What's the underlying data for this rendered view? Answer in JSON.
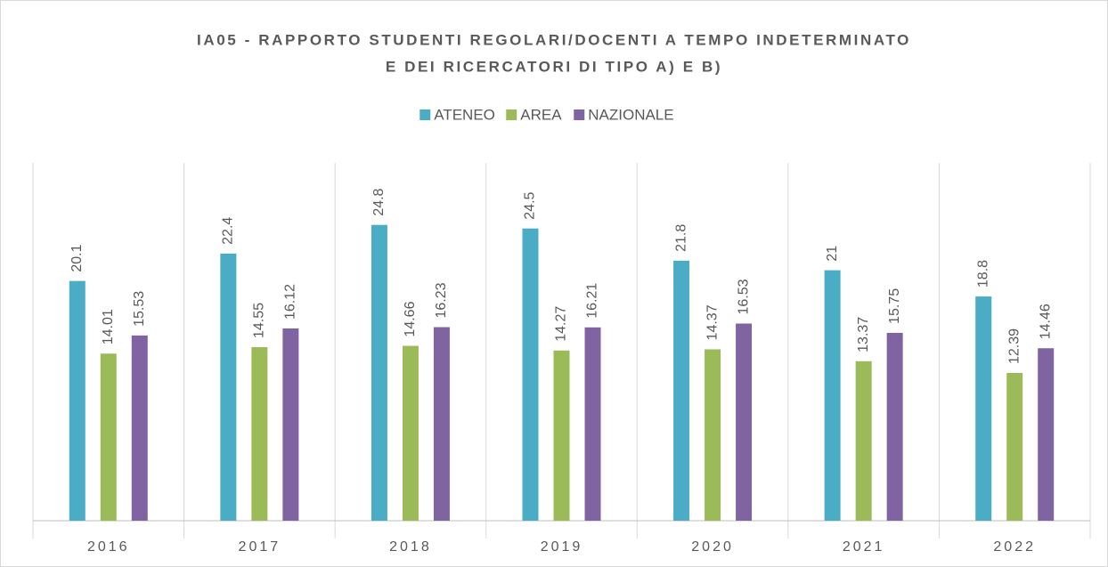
{
  "chart_data": {
    "type": "bar",
    "title": [
      "IA05 - RAPPORTO STUDENTI REGOLARI/DOCENTI A TEMPO INDETERMINATO",
      "E DEI RICERCATORI DI TIPO A) E B)"
    ],
    "categories": [
      "2016",
      "2017",
      "2018",
      "2019",
      "2020",
      "2021",
      "2022"
    ],
    "series": [
      {
        "name": "ATENEO",
        "color": "#4bacc6",
        "values": [
          20.1,
          22.4,
          24.8,
          24.5,
          21.8,
          21,
          18.8
        ]
      },
      {
        "name": "AREA",
        "color": "#9bbb59",
        "values": [
          14.01,
          14.55,
          14.66,
          14.27,
          14.37,
          13.37,
          12.39
        ]
      },
      {
        "name": "NAZIONALE",
        "color": "#8064a2",
        "values": [
          15.53,
          16.12,
          16.23,
          16.21,
          16.53,
          15.75,
          14.46
        ]
      }
    ],
    "ylim": [
      0,
      30
    ],
    "legend": "top"
  }
}
